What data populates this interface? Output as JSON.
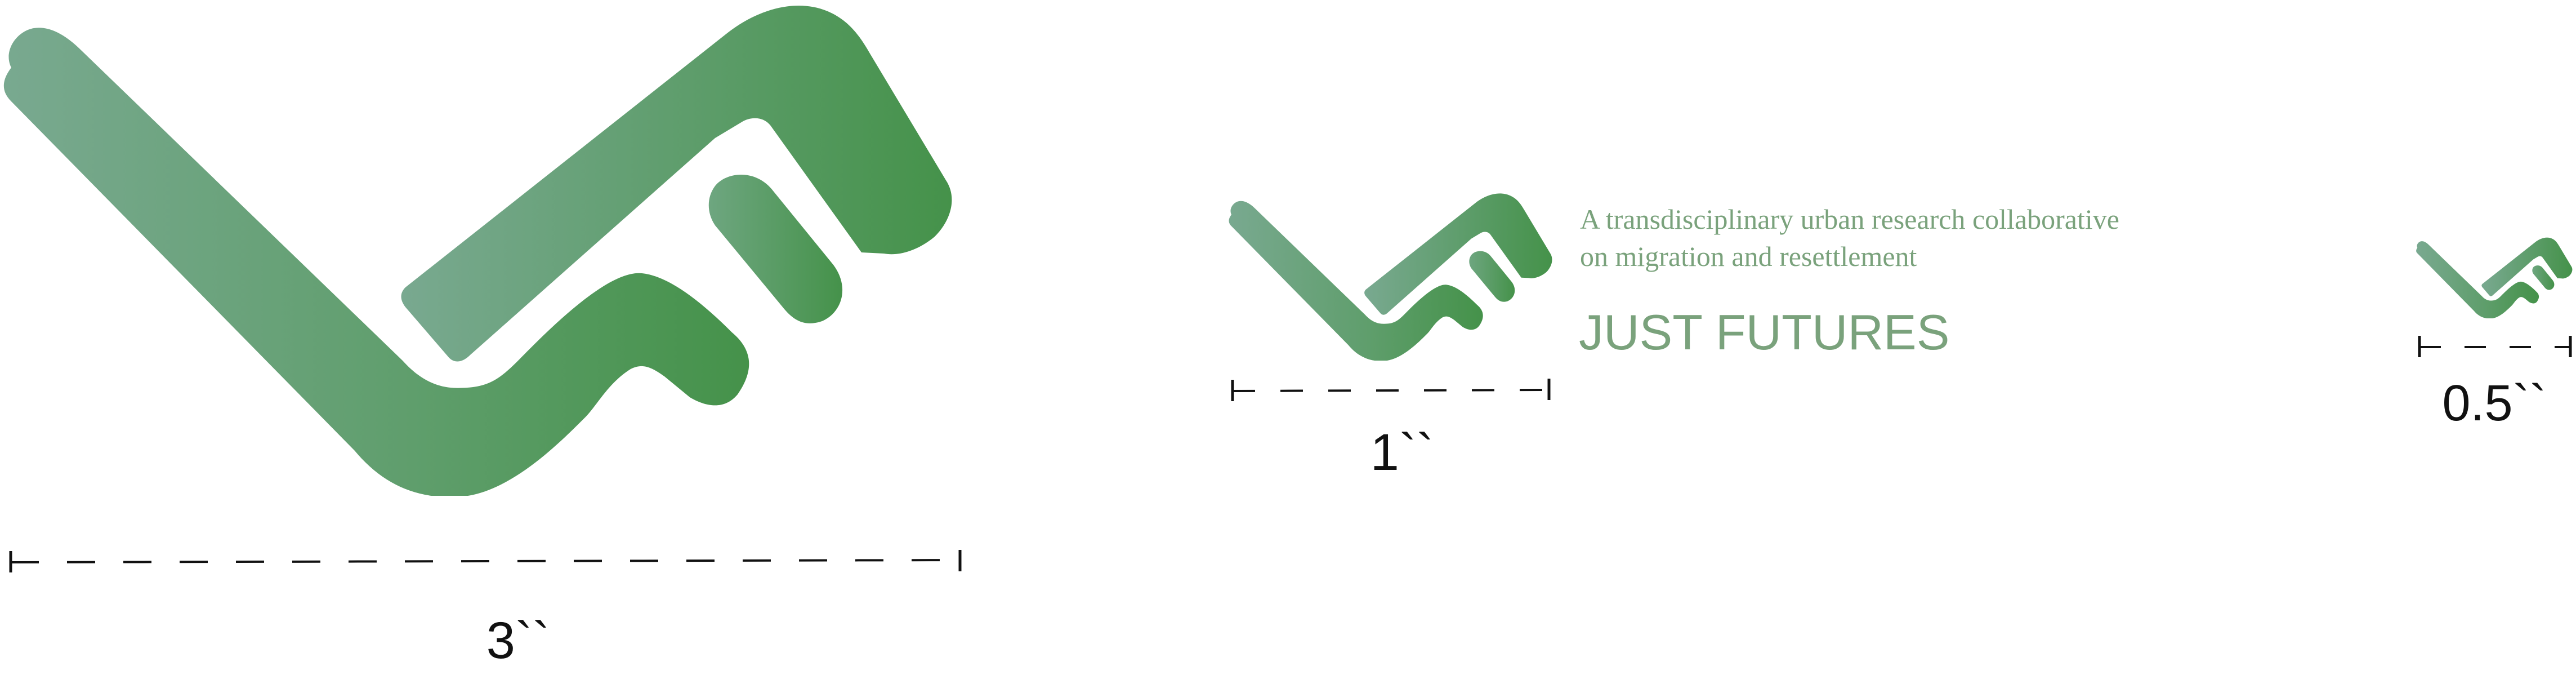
{
  "brand": {
    "tagline_line1": "A transdisciplinary urban research collaborative",
    "tagline_line2": "on migration and resettlement",
    "name": "JUST FUTURES"
  },
  "size_labels": {
    "large": "3``",
    "medium": "1``",
    "small": "0.5``"
  },
  "colors": {
    "green_dark": "#45924a",
    "green_light": "#79a990",
    "text_green": "#7aa27c",
    "scale_line": "#111111"
  }
}
